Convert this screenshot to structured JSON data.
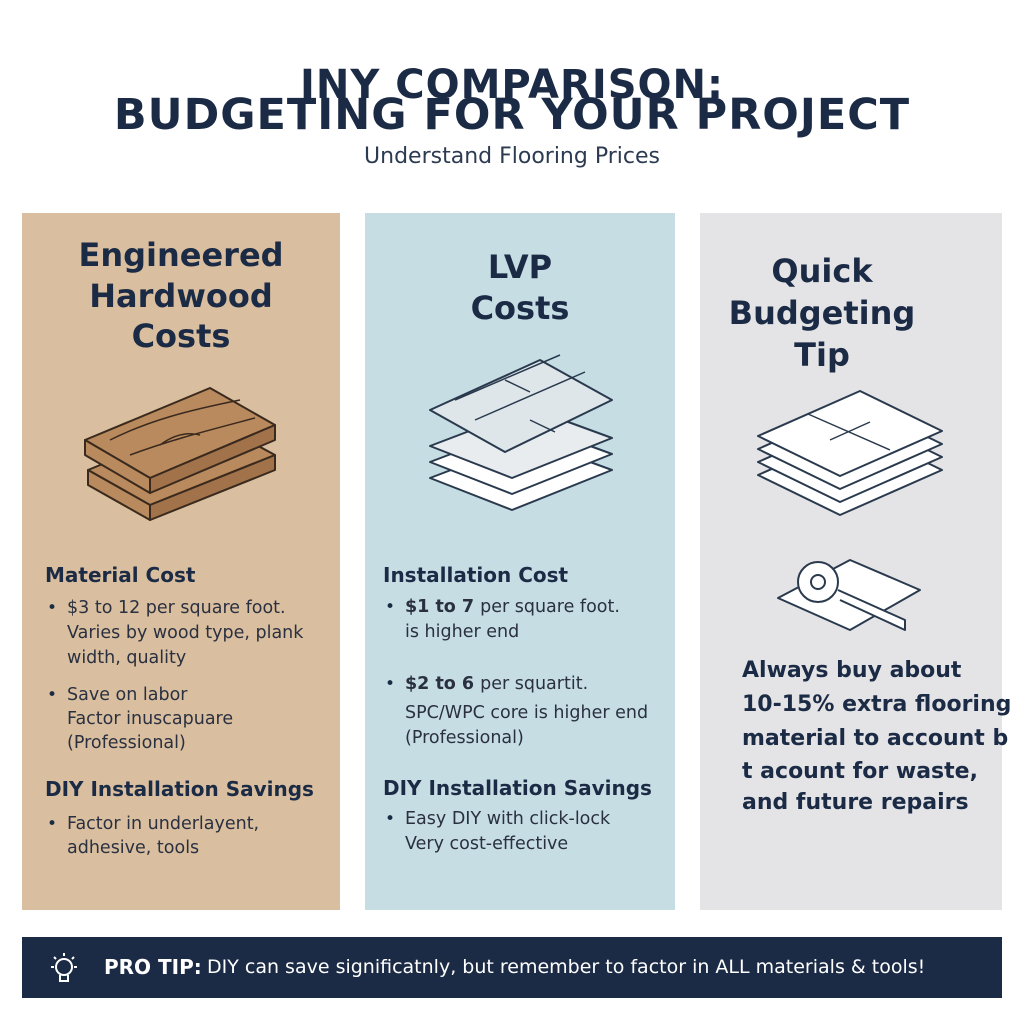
{
  "header": {
    "title_lines": [
      "INY COMPARISON:",
      "BUDGETING FOR YOUR PROJECT"
    ],
    "subtitle": "Understand Flooring Prices"
  },
  "columns": [
    {
      "heading_lines": [
        "Engineered",
        "Hardwood",
        "Costs"
      ],
      "sections": [
        {
          "title": "Material Cost",
          "bullets": [
            {
              "lines": [
                "$3 to 12 per square foot.",
                "Varies by wood type, plank",
                "width, quality"
              ]
            },
            {
              "lines": [
                "Save on labor",
                "Factor inuscapuare",
                "(Professional)"
              ]
            }
          ]
        },
        {
          "title": "DIY Installation Savings",
          "bullets": [
            {
              "lines": [
                "Factor in underlayent,",
                "adhesive, tools"
              ]
            }
          ]
        }
      ]
    },
    {
      "heading_lines": [
        "LVP",
        "Costs"
      ],
      "sections": [
        {
          "title": "Installation Cost",
          "bullets": [
            {
              "lead": "$1 to 7",
              "lines": [
                "per square foot.",
                "is higher end"
              ]
            },
            {
              "lead": "$2 to 6",
              "lines": [
                "per squartit.",
                "SPC/WPC core is higher end",
                "(Professional)"
              ]
            }
          ]
        },
        {
          "title": "DIY Installation Savings",
          "bullets": [
            {
              "lines": [
                "Easy DIY with click-lock",
                "Very cost-effective"
              ]
            }
          ]
        }
      ]
    },
    {
      "heading_lines": [
        "Quick",
        "Budgeting",
        "Tip"
      ],
      "tip_lines": [
        "Always buy about",
        "10-15% extra flooring",
        "material to account b",
        "t acount for waste,",
        "and future repairs"
      ]
    }
  ],
  "footer": {
    "label": "PRO TIP:",
    "text": "DIY can save significatnly, but remember to factor in ALL materials & tools!"
  }
}
